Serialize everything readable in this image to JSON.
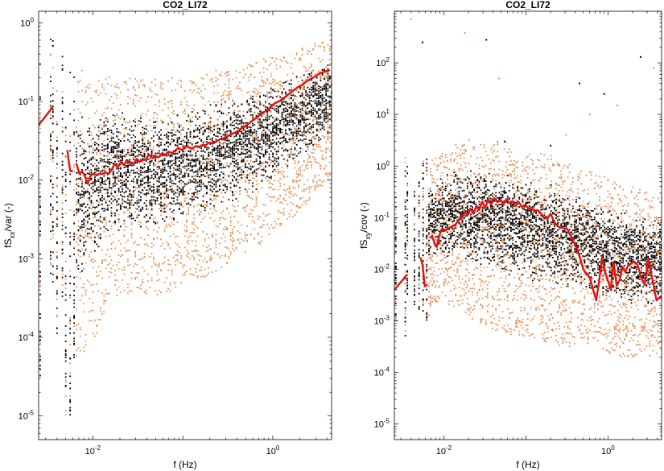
{
  "chart_data": [
    {
      "type": "scatter",
      "title": "CO2_LI72",
      "xlabel": "f (Hz)",
      "ylabel": {
        "main": "fS",
        "sub": "xx",
        "suffix": "/var (-)"
      },
      "xscale": "log",
      "yscale": "log",
      "xlim": [
        0.0025,
        4.5
      ],
      "ylim": [
        5e-06,
        1.4
      ],
      "xticks": [
        0.01,
        1
      ],
      "xtick_labels": [
        "10^-2",
        "10^0"
      ],
      "yticks": [
        1e-05,
        0.0001,
        0.001,
        0.01,
        0.1,
        1
      ],
      "ytick_labels": [
        "10^-5",
        "10^-4",
        "10^-3",
        "10^-2",
        "10^-1",
        "10^0"
      ],
      "scatter_colors": [
        "#000000",
        "#e8925a"
      ],
      "line_color": "#e81010",
      "grid": false,
      "median_line_segments": [
        {
          "x": [
            0.0025,
            0.0036
          ],
          "y": [
            0.05,
            0.085
          ]
        },
        {
          "x": [
            0.0052,
            0.0056,
            0.006
          ],
          "y": [
            0.024,
            0.013,
            0.013
          ]
        },
        {
          "x": [
            0.0066,
            0.0071,
            0.0076,
            0.0082,
            0.0088,
            0.0095,
            0.0102,
            0.011,
            0.0119,
            0.0128,
            0.0138,
            0.015,
            0.0162,
            0.0175,
            0.019,
            0.0205,
            0.0222,
            0.024,
            0.026,
            0.0282,
            0.0305,
            0.033,
            0.036,
            0.039,
            0.042,
            0.046,
            0.05,
            0.054,
            0.059,
            0.064,
            0.07,
            0.076,
            0.083,
            0.09,
            0.098,
            0.107,
            0.117,
            0.127,
            0.139,
            0.152,
            0.166,
            0.181,
            0.198,
            0.217,
            0.237,
            0.26,
            0.285,
            0.312,
            0.342,
            0.375,
            0.41,
            0.45,
            0.5,
            0.55,
            0.6,
            0.66,
            0.73,
            0.8,
            0.88,
            0.97,
            1.06,
            1.17,
            1.29,
            1.42,
            1.56,
            1.72,
            1.9,
            2.1,
            2.3,
            2.55,
            2.8,
            3.1,
            3.4,
            3.8,
            4.3
          ],
          "y": [
            0.016,
            0.012,
            0.013,
            0.011,
            0.009,
            0.0115,
            0.012,
            0.0115,
            0.012,
            0.012,
            0.0125,
            0.012,
            0.0135,
            0.016,
            0.0145,
            0.017,
            0.0155,
            0.018,
            0.0165,
            0.016,
            0.0185,
            0.017,
            0.018,
            0.0185,
            0.021,
            0.019,
            0.02,
            0.0195,
            0.022,
            0.021,
            0.023,
            0.022,
            0.024,
            0.0255,
            0.024,
            0.027,
            0.026,
            0.025,
            0.027,
            0.026,
            0.028,
            0.028,
            0.03,
            0.029,
            0.031,
            0.033,
            0.034,
            0.036,
            0.038,
            0.04,
            0.042,
            0.046,
            0.049,
            0.053,
            0.058,
            0.062,
            0.068,
            0.073,
            0.079,
            0.087,
            0.095,
            0.1,
            0.108,
            0.118,
            0.128,
            0.14,
            0.152,
            0.16,
            0.175,
            0.19,
            0.2,
            0.215,
            0.23,
            0.24,
            0.25
          ]
        }
      ],
      "scatter_summary": {
        "x": [
          0.0026,
          0.0034,
          0.0036,
          0.004,
          0.0046,
          0.005,
          0.0056,
          0.0062,
          0.0075,
          0.009,
          0.011,
          0.015,
          0.02,
          0.03,
          0.05,
          0.08,
          0.12,
          0.2,
          0.3,
          0.5,
          0.8,
          1.2,
          2.0,
          3.0,
          4.3
        ],
        "y_low": [
          3e-05,
          0.0006,
          0.0005,
          6e-05,
          0.0003,
          1e-05,
          1e-05,
          5e-05,
          4e-05,
          0.0001,
          0.0001,
          0.0003,
          0.0003,
          0.0004,
          0.0003,
          0.0004,
          0.0005,
          0.0006,
          0.0008,
          0.0012,
          0.0016,
          0.0025,
          0.004,
          0.007,
          0.01
        ],
        "y_high": [
          0.35,
          1.05,
          0.95,
          0.3,
          0.4,
          0.35,
          0.3,
          0.28,
          0.25,
          0.24,
          0.22,
          0.22,
          0.2,
          0.2,
          0.2,
          0.2,
          0.2,
          0.24,
          0.26,
          0.3,
          0.36,
          0.42,
          0.48,
          0.55,
          0.6
        ]
      }
    },
    {
      "type": "scatter",
      "title": "CO2_LI72",
      "xlabel": "f (Hz)",
      "ylabel": {
        "main": "fS",
        "sub": "xy",
        "suffix": "/cov (-)"
      },
      "xscale": "log",
      "yscale": "log",
      "xlim": [
        0.0025,
        4.5
      ],
      "ylim": [
        5e-06,
        1000
      ],
      "xticks": [
        0.01,
        1
      ],
      "xtick_labels": [
        "10^-2",
        "10^0"
      ],
      "yticks": [
        1e-05,
        0.0001,
        0.001,
        0.01,
        0.1,
        1,
        10,
        100
      ],
      "ytick_labels": [
        "10^-5",
        "10^-4",
        "10^-3",
        "10^-2",
        "10^-1",
        "10^0",
        "10^1",
        "10^2"
      ],
      "scatter_colors": [
        "#000000",
        "#e8925a"
      ],
      "line_color": "#e81010",
      "grid": false,
      "median_line_segments": [
        {
          "x": [
            0.0025,
            0.0036
          ],
          "y": [
            0.004,
            0.008
          ]
        },
        {
          "x": [
            0.0052,
            0.0055,
            0.0059
          ],
          "y": [
            0.017,
            0.0125,
            0.0045
          ]
        },
        {
          "x": [
            0.0068,
            0.0072,
            0.0078,
            0.0082,
            0.0088,
            0.0095,
            0.0102,
            0.011,
            0.012,
            0.013,
            0.014,
            0.0152,
            0.0165,
            0.018,
            0.0195,
            0.021,
            0.023,
            0.025,
            0.027,
            0.029,
            0.032,
            0.035,
            0.038,
            0.041,
            0.045,
            0.049,
            0.053,
            0.058,
            0.063,
            0.069,
            0.075,
            0.082,
            0.09,
            0.098,
            0.107,
            0.117,
            0.128,
            0.14,
            0.153,
            0.167,
            0.183,
            0.2,
            0.22,
            0.24,
            0.26,
            0.29,
            0.32,
            0.35,
            0.38,
            0.42,
            0.46,
            0.5,
            0.55,
            0.6,
            0.66,
            0.72,
            0.78,
            0.85,
            0.92,
            1.0,
            1.08,
            1.17,
            1.27,
            1.38,
            1.5,
            1.63,
            1.77,
            1.93,
            2.1,
            2.3,
            2.55,
            2.8,
            3.1,
            3.5,
            3.9,
            4.4
          ],
          "y": [
            0.04,
            0.045,
            0.03,
            0.027,
            0.045,
            0.06,
            0.055,
            0.06,
            0.065,
            0.07,
            0.075,
            0.09,
            0.1,
            0.13,
            0.11,
            0.15,
            0.12,
            0.17,
            0.14,
            0.2,
            0.16,
            0.22,
            0.18,
            0.24,
            0.2,
            0.22,
            0.18,
            0.23,
            0.19,
            0.21,
            0.17,
            0.2,
            0.16,
            0.18,
            0.15,
            0.155,
            0.13,
            0.14,
            0.12,
            0.1,
            0.095,
            0.12,
            0.085,
            0.07,
            0.065,
            0.062,
            0.06,
            0.045,
            0.035,
            0.025,
            0.016,
            0.01,
            0.008,
            0.007,
            0.004,
            0.0025,
            0.006,
            0.017,
            0.009,
            0.006,
            0.004,
            0.014,
            0.005,
            0.006,
            0.011,
            0.009,
            0.012,
            0.013,
            0.014,
            0.012,
            0.007,
            0.005,
            0.016,
            0.006,
            0.0025,
            0.003
          ]
        }
      ],
      "scatter_summary": {
        "x": [
          0.0026,
          0.0034,
          0.0036,
          0.0044,
          0.005,
          0.0056,
          0.0062,
          0.0075,
          0.009,
          0.011,
          0.015,
          0.02,
          0.03,
          0.05,
          0.08,
          0.12,
          0.2,
          0.3,
          0.5,
          0.8,
          1.2,
          2.0,
          3.0,
          4.3
        ],
        "y_low": [
          0.001,
          0.0005,
          0.003,
          0.002,
          0.0015,
          0.001,
          0.001,
          0.002,
          0.002,
          0.0015,
          0.002,
          0.0012,
          0.0008,
          0.0006,
          0.0005,
          0.0004,
          0.0004,
          0.0003,
          0.0004,
          0.0003,
          0.0002,
          0.0002,
          0.0002,
          0.0002
        ],
        "y_high": [
          0.3,
          2.0,
          1.5,
          1.0,
          1.2,
          1.3,
          1.4,
          1.5,
          1.8,
          2.2,
          2.8,
          3.2,
          3.5,
          3.0,
          2.5,
          2.0,
          1.6,
          1.2,
          0.9,
          0.7,
          0.5,
          0.4,
          0.35,
          0.3
        ]
      },
      "scatter_outliers": {
        "x": [
          0.004,
          0.0055,
          0.018,
          0.033,
          0.047,
          0.055,
          0.1,
          0.2,
          0.31,
          0.45,
          0.6,
          0.9,
          1.3,
          2.5,
          3.6
        ],
        "y": [
          700,
          250,
          380,
          280,
          50,
          3.0,
          0.8,
          2.5,
          4.0,
          40,
          10,
          25,
          15,
          130,
          80
        ]
      }
    }
  ]
}
